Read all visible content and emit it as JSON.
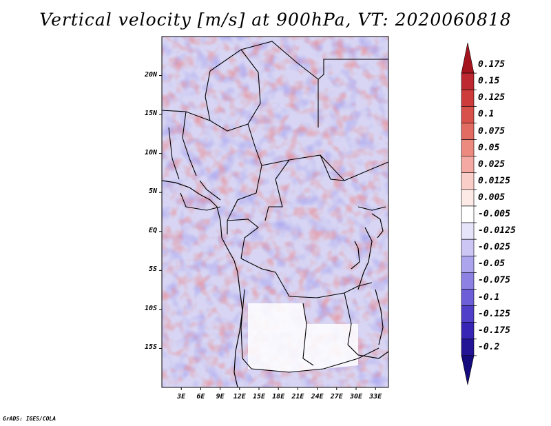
{
  "title": "Vertical velocity [m/s] at 900hPa, VT: 2020060818",
  "credit": "GrADS: IGES/COLA",
  "map": {
    "lat_range": [
      -20,
      25
    ],
    "lon_range": [
      0,
      35
    ],
    "lat_labels": [
      "20N",
      "15N",
      "10N",
      "5N",
      "EQ",
      "5S",
      "10S",
      "15S"
    ],
    "lon_labels": [
      "3E",
      "6E",
      "9E",
      "12E",
      "15E",
      "18E",
      "21E",
      "24E",
      "27E",
      "30E",
      "33E"
    ]
  },
  "colorbar": {
    "labels": [
      "0.175",
      "0.15",
      "0.125",
      "0.1",
      "0.075",
      "0.05",
      "0.025",
      "0.0125",
      "0.005",
      "-0.005",
      "-0.0125",
      "-0.025",
      "-0.05",
      "-0.075",
      "-0.1",
      "-0.125",
      "-0.175",
      "-0.2"
    ],
    "colors": [
      "#a4141e",
      "#be2830",
      "#cd3b3a",
      "#d9514b",
      "#e26b62",
      "#ec8a80",
      "#f4aaa3",
      "#f9cdc8",
      "#fde9e6",
      "#ffffff",
      "#e6e4fa",
      "#cbc6f3",
      "#aca4ec",
      "#8d82e3",
      "#6d5fd8",
      "#5040c9",
      "#3726b5",
      "#231495",
      "#150b7d"
    ]
  }
}
